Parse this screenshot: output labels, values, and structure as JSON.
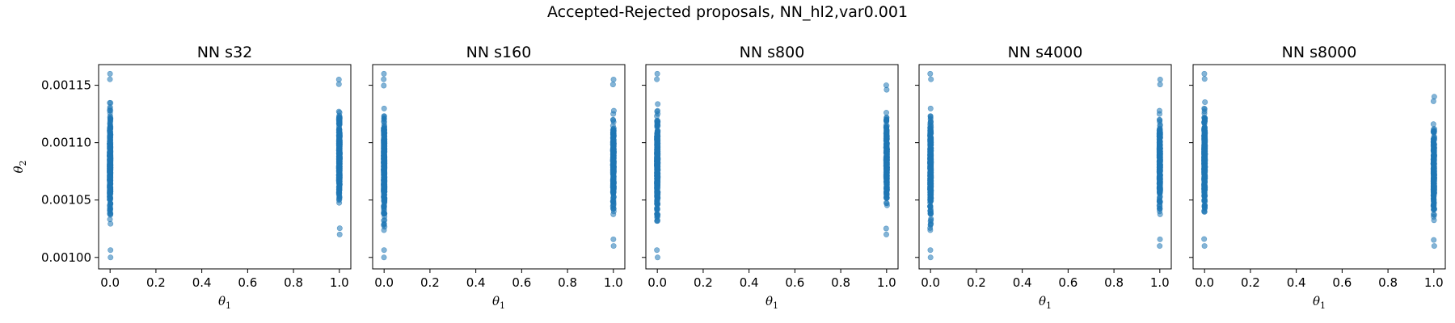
{
  "figure": {
    "suptitle": "Accepted-Rejected proposals, NN_hl2,var0.001"
  },
  "chart_data": [
    {
      "type": "scatter",
      "title": "NN s32",
      "xlabel": "θ1",
      "ylabel": "θ2",
      "xlim": [
        -0.05,
        1.05
      ],
      "ylim": [
        0.00099,
        0.001168
      ],
      "x_ticks": [
        "0.0",
        "0.2",
        "0.4",
        "0.6",
        "0.8",
        "1.0"
      ],
      "y_ticks": [
        "0.00100",
        "0.00105",
        "0.00110",
        "0.00115"
      ],
      "color": "#1f77b4",
      "series": [
        {
          "x": 0.0,
          "y_min": 0.001,
          "y_max": 0.00116
        },
        {
          "x": 1.0,
          "y_min": 0.00102,
          "y_max": 0.001155
        }
      ]
    },
    {
      "type": "scatter",
      "title": "NN s160",
      "xlabel": "θ1",
      "xlim": [
        -0.05,
        1.05
      ],
      "ylim": [
        0.00099,
        0.001168
      ],
      "x_ticks": [
        "0.0",
        "0.2",
        "0.4",
        "0.6",
        "0.8",
        "1.0"
      ],
      "color": "#1f77b4",
      "series": [
        {
          "x": 0.0,
          "y_min": 0.001,
          "y_max": 0.00116
        },
        {
          "x": 1.0,
          "y_min": 0.00101,
          "y_max": 0.001155
        }
      ]
    },
    {
      "type": "scatter",
      "title": "NN s800",
      "xlabel": "θ1",
      "xlim": [
        -0.05,
        1.05
      ],
      "ylim": [
        0.00099,
        0.001168
      ],
      "x_ticks": [
        "0.0",
        "0.2",
        "0.4",
        "0.6",
        "0.8",
        "1.0"
      ],
      "color": "#1f77b4",
      "series": [
        {
          "x": 0.0,
          "y_min": 0.001,
          "y_max": 0.00116
        },
        {
          "x": 1.0,
          "y_min": 0.00102,
          "y_max": 0.00115
        }
      ]
    },
    {
      "type": "scatter",
      "title": "NN s4000",
      "xlabel": "θ1",
      "xlim": [
        -0.05,
        1.05
      ],
      "ylim": [
        0.00099,
        0.001168
      ],
      "x_ticks": [
        "0.0",
        "0.2",
        "0.4",
        "0.6",
        "0.8",
        "1.0"
      ],
      "color": "#1f77b4",
      "series": [
        {
          "x": 0.0,
          "y_min": 0.001,
          "y_max": 0.00116
        },
        {
          "x": 1.0,
          "y_min": 0.00101,
          "y_max": 0.001155
        }
      ]
    },
    {
      "type": "scatter",
      "title": "NN s8000",
      "xlabel": "θ1",
      "xlim": [
        -0.05,
        1.05
      ],
      "ylim": [
        0.00099,
        0.001168
      ],
      "x_ticks": [
        "0.0",
        "0.2",
        "0.4",
        "0.6",
        "0.8",
        "1.0"
      ],
      "color": "#1f77b4",
      "series": [
        {
          "x": 0.0,
          "y_min": 0.00101,
          "y_max": 0.00116
        },
        {
          "x": 1.0,
          "y_min": 0.00101,
          "y_max": 0.00114
        }
      ]
    }
  ]
}
